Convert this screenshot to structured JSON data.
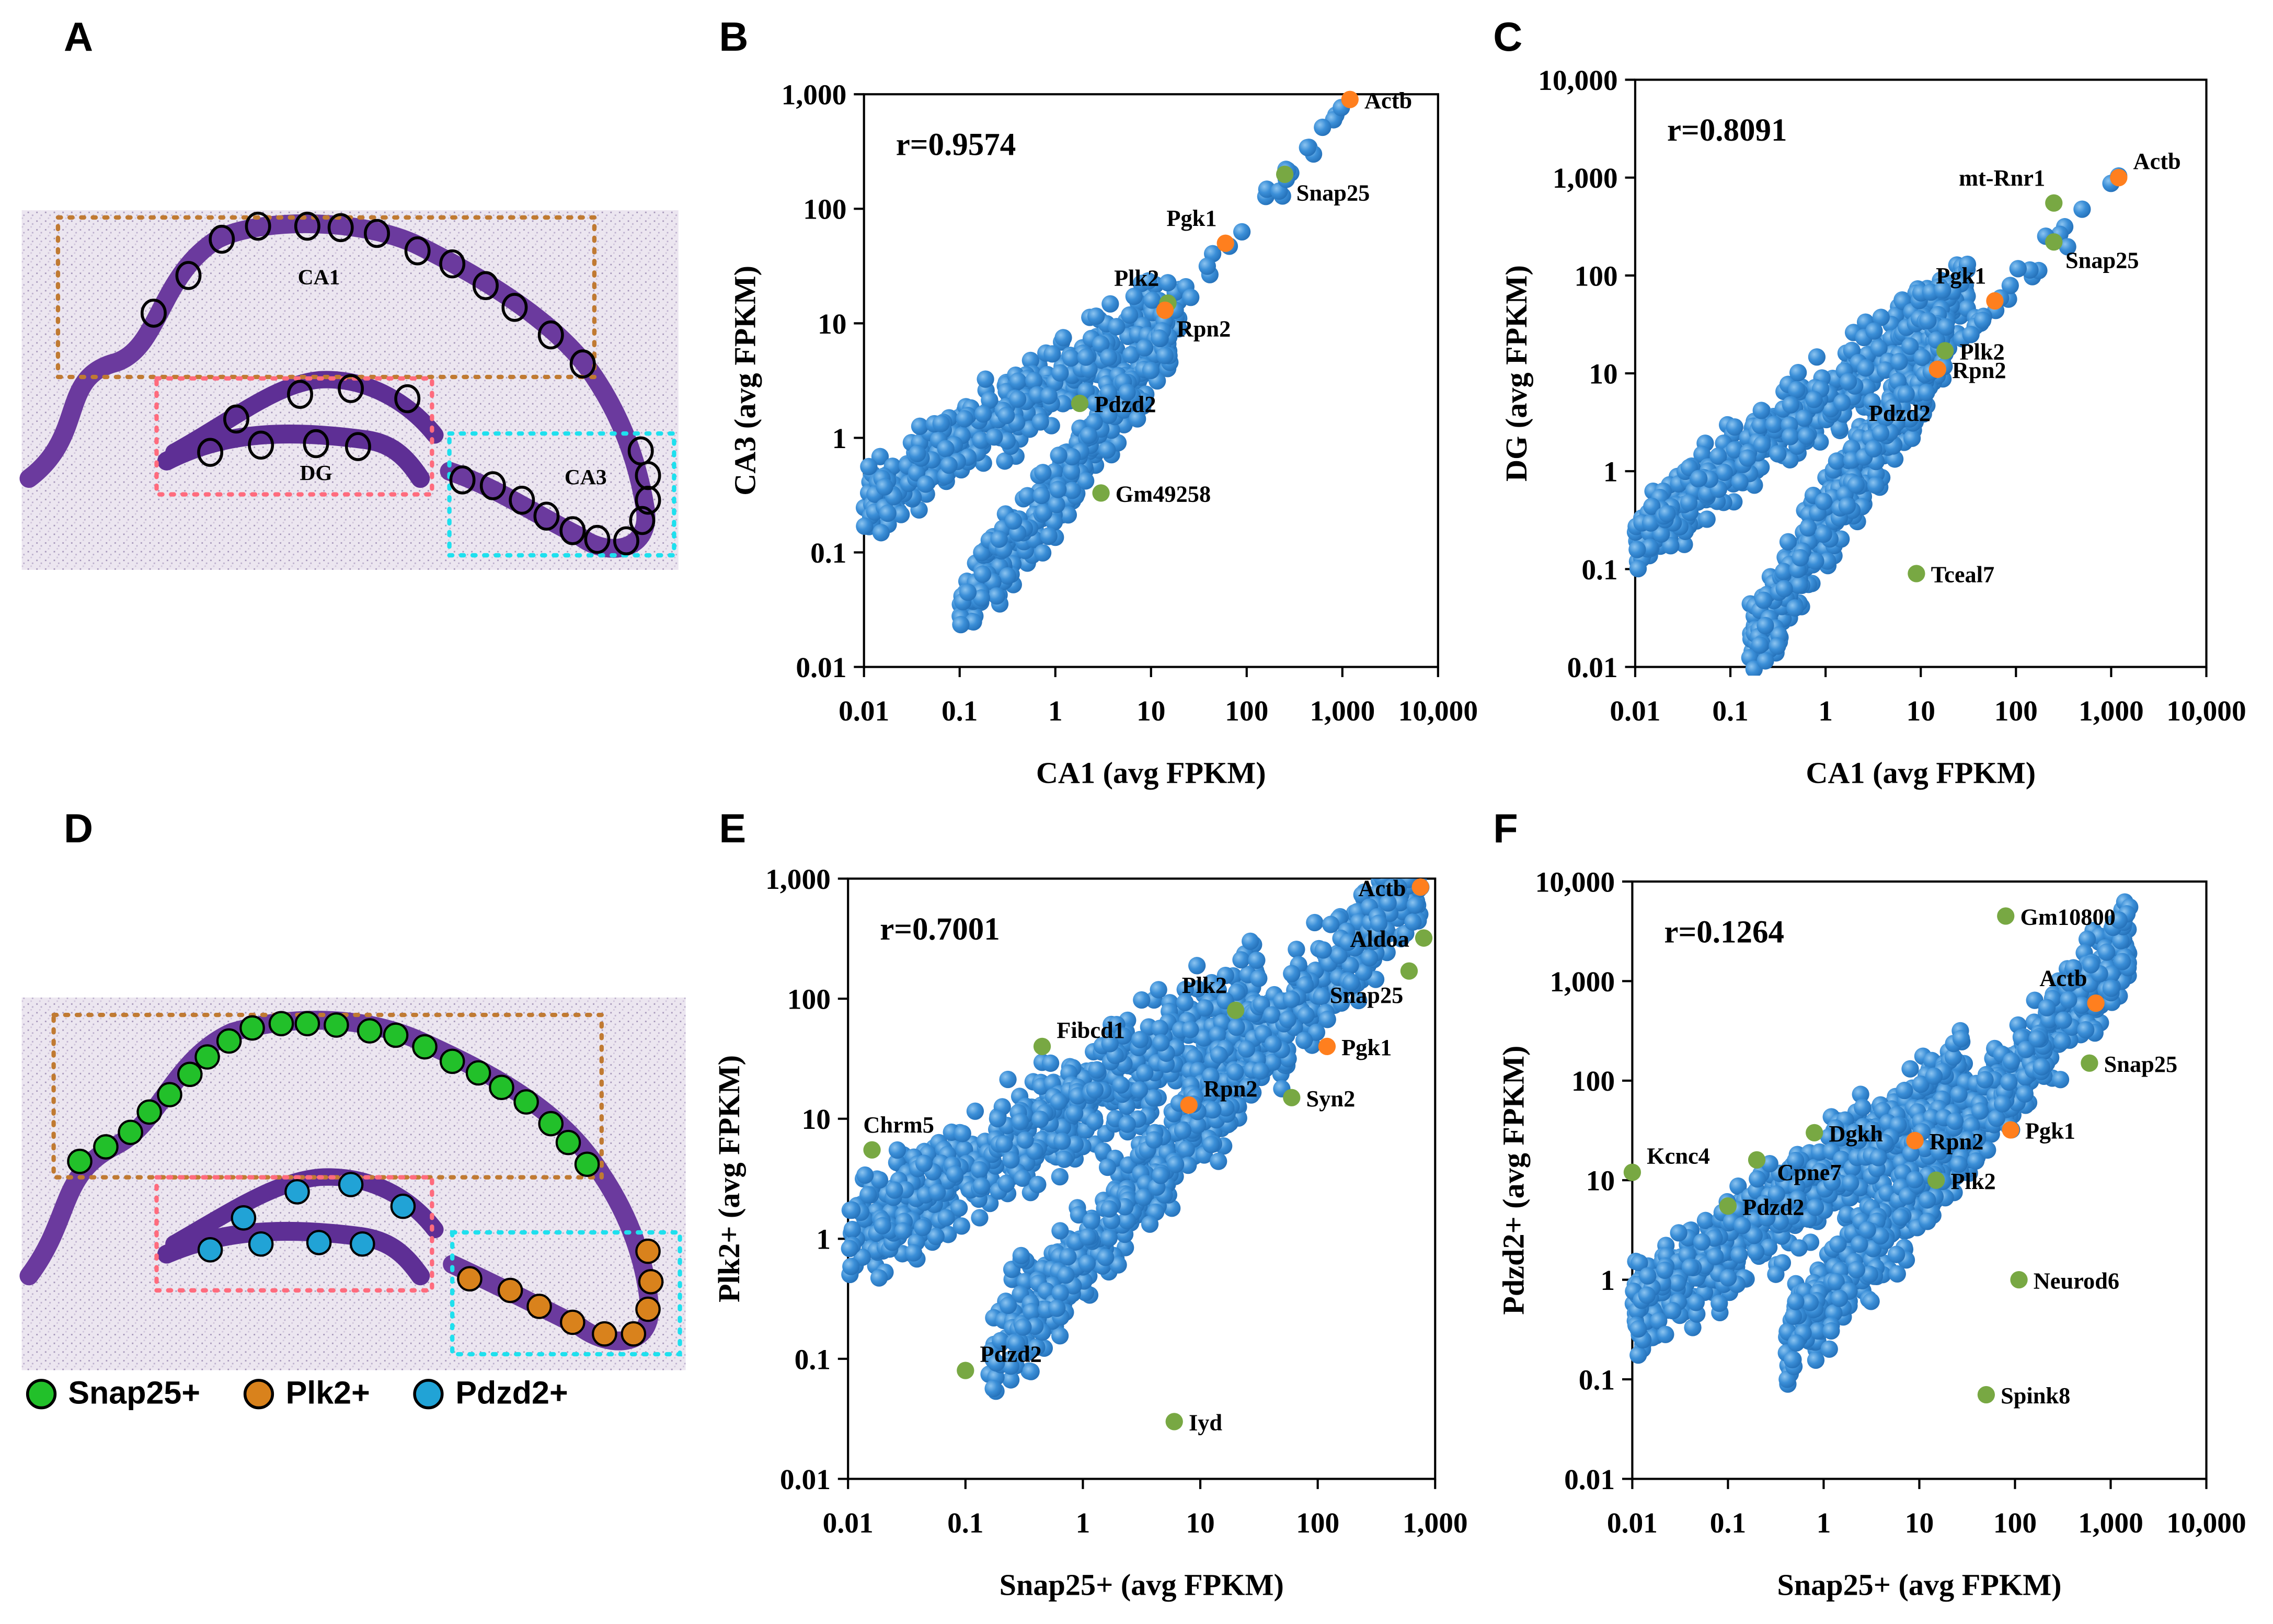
{
  "panels": {
    "A": "A",
    "B": "B",
    "C": "C",
    "D": "D",
    "E": "E",
    "F": "F"
  },
  "image_panels": {
    "A": {
      "regions": {
        "ca1": "CA1",
        "dg": "DG",
        "ca3": "CA3"
      }
    },
    "D": {
      "legend": [
        {
          "label": "Snap25+",
          "color": "#22c02a"
        },
        {
          "label": "Plk2+",
          "color": "#d9821c"
        },
        {
          "label": "Pdzd2+",
          "color": "#21a3d6"
        }
      ]
    }
  },
  "colors": {
    "cloud": "#3b8fd8",
    "orange": "#ff7f1e",
    "green": "#78a843"
  },
  "chart_data": [
    {
      "id": "B",
      "type": "scatter",
      "scale": "log",
      "r_label": "r=0.9574",
      "xlabel": "CA1 (avg FPKM)",
      "ylabel": "CA3 (avg FPKM)",
      "xlim": [
        0.01,
        10000
      ],
      "ylim": [
        0.01,
        1000
      ],
      "xticks": [
        "0.01",
        "0.1",
        "1",
        "10",
        "100",
        "1,000",
        "10,000"
      ],
      "yticks": [
        "0.01",
        "0.1",
        "1",
        "10",
        "100",
        "1,000"
      ],
      "clouds": [
        {
          "log_x_range": [
            -2,
            1.3
          ],
          "slope": 0.53,
          "intercept": 0.47,
          "spread": 0.25,
          "count": 420
        },
        {
          "log_x_range": [
            -1,
            1.2
          ],
          "slope": 1.1,
          "intercept": -0.45,
          "spread": 0.22,
          "count": 330
        },
        {
          "log_x_range": [
            1,
            3.1
          ],
          "slope": 1.0,
          "intercept": -0.15,
          "spread": 0.08,
          "count": 25
        }
      ],
      "points": [
        {
          "gene": "Actb",
          "x": 1200,
          "y": 900,
          "color": "orange",
          "label_pos": "right"
        },
        {
          "gene": "Snap25",
          "x": 250,
          "y": 200,
          "color": "green",
          "label_pos": "below-right"
        },
        {
          "gene": "Pgk1",
          "x": 60,
          "y": 50,
          "color": "orange",
          "label_pos": "above-left"
        },
        {
          "gene": "Plk2",
          "x": 15,
          "y": 15,
          "color": "green",
          "label_pos": "above-left"
        },
        {
          "gene": "Rpn2",
          "x": 14,
          "y": 13,
          "color": "orange",
          "label_pos": "below-right"
        },
        {
          "gene": "Pdzd2",
          "x": 1.8,
          "y": 2,
          "color": "green",
          "label_pos": "right"
        },
        {
          "gene": "Gm49258",
          "x": 3,
          "y": 0.33,
          "color": "green",
          "label_pos": "right"
        }
      ]
    },
    {
      "id": "C",
      "type": "scatter",
      "scale": "log",
      "r_label": "r=0.8091",
      "xlabel": "CA1 (avg FPKM)",
      "ylabel": "DG (avg FPKM)",
      "xlim": [
        0.01,
        10000
      ],
      "ylim": [
        0.01,
        10000
      ],
      "xticks": [
        "0.01",
        "0.1",
        "1",
        "10",
        "100",
        "1,000",
        "10,000"
      ],
      "yticks": [
        "0.01",
        "0.1",
        "1",
        "10",
        "100",
        "1,000",
        "10,000"
      ],
      "clouds": [
        {
          "log_x_range": [
            -2,
            1.5
          ],
          "slope": 0.73,
          "intercept": 0.76,
          "spread": 0.25,
          "count": 480
        },
        {
          "log_x_range": [
            -0.8,
            1.3
          ],
          "slope": 1.55,
          "intercept": -0.55,
          "spread": 0.3,
          "count": 480
        },
        {
          "log_x_range": [
            1.2,
            3.1
          ],
          "slope": 1.0,
          "intercept": -0.1,
          "spread": 0.1,
          "count": 25
        }
      ],
      "points": [
        {
          "gene": "Actb",
          "x": 1200,
          "y": 1000,
          "color": "orange",
          "label_pos": "right-up"
        },
        {
          "gene": "mt-Rnr1",
          "x": 250,
          "y": 550,
          "color": "green",
          "label_pos": "above-left"
        },
        {
          "gene": "Snap25",
          "x": 250,
          "y": 220,
          "color": "green",
          "label_pos": "below-right"
        },
        {
          "gene": "Pgk1",
          "x": 60,
          "y": 55,
          "color": "orange",
          "label_pos": "above-left"
        },
        {
          "gene": "Plk2",
          "x": 18,
          "y": 17,
          "color": "green",
          "label_pos": "right"
        },
        {
          "gene": "Rpn2",
          "x": 15,
          "y": 11,
          "color": "orange",
          "label_pos": "right"
        },
        {
          "gene": "Pdzd2",
          "x": 6,
          "y": 4,
          "color": "none",
          "label_pos": "center"
        },
        {
          "gene": "Tceal7",
          "x": 9,
          "y": 0.09,
          "color": "green",
          "label_pos": "right"
        }
      ]
    },
    {
      "id": "E",
      "type": "scatter",
      "scale": "log",
      "r_label": "r=0.7001",
      "xlabel": "Snap25+ (avg FPKM)",
      "ylabel": "Plk2+ (avg FPKM)",
      "xlim": [
        0.01,
        1000
      ],
      "ylim": [
        0.01,
        1000
      ],
      "xticks": [
        "0.01",
        "0.1",
        "1",
        "10",
        "100",
        "1,000"
      ],
      "yticks": [
        "0.01",
        "0.1",
        "1",
        "10",
        "100",
        "1,000"
      ],
      "clouds": [
        {
          "log_x_range": [
            -2,
            1.5
          ],
          "slope": 0.57,
          "intercept": 1.13,
          "spread": 0.33,
          "count": 650
        },
        {
          "log_x_range": [
            -0.8,
            2.9
          ],
          "slope": 1.1,
          "intercept": -0.1,
          "spread": 0.3,
          "count": 750
        }
      ],
      "points": [
        {
          "gene": "Actb",
          "x": 750,
          "y": 850,
          "color": "orange",
          "label_pos": "left"
        },
        {
          "gene": "Aldoa",
          "x": 800,
          "y": 320,
          "color": "green",
          "label_pos": "left"
        },
        {
          "gene": "Snap25",
          "x": 600,
          "y": 170,
          "color": "green",
          "label_pos": "below-left"
        },
        {
          "gene": "Plk2",
          "x": 20,
          "y": 80,
          "color": "green",
          "label_pos": "above-left"
        },
        {
          "gene": "Pgk1",
          "x": 120,
          "y": 40,
          "color": "orange",
          "label_pos": "right"
        },
        {
          "gene": "Rpn2",
          "x": 8,
          "y": 13,
          "color": "orange",
          "label_pos": "right-up"
        },
        {
          "gene": "Syn2",
          "x": 60,
          "y": 15,
          "color": "green",
          "label_pos": "right"
        },
        {
          "gene": "Fibcd1",
          "x": 0.45,
          "y": 40,
          "color": "green",
          "label_pos": "right-up"
        },
        {
          "gene": "Chrm5",
          "x": 0.016,
          "y": 5.5,
          "color": "green",
          "label_pos": "above"
        },
        {
          "gene": "Pdzd2",
          "x": 0.1,
          "y": 0.08,
          "color": "green",
          "label_pos": "right-up"
        },
        {
          "gene": "Iyd",
          "x": 6,
          "y": 0.03,
          "color": "green",
          "label_pos": "right"
        }
      ]
    },
    {
      "id": "F",
      "type": "scatter",
      "scale": "log",
      "r_label": "r=0.1264",
      "xlabel": "Snap25+ (avg FPKM)",
      "ylabel": "Pdzd2+ (avg FPKM)",
      "xlim": [
        0.01,
        10000
      ],
      "ylim": [
        0.01,
        10000
      ],
      "xticks": [
        "0.01",
        "0.1",
        "1",
        "10",
        "100",
        "1,000",
        "10,000"
      ],
      "yticks": [
        "0.01",
        "0.1",
        "1",
        "10",
        "100",
        "1,000",
        "10,000"
      ],
      "clouds": [
        {
          "log_x_range": [
            -2,
            1.5
          ],
          "slope": 0.67,
          "intercept": 1.03,
          "spread": 0.33,
          "count": 650
        },
        {
          "log_x_range": [
            -0.4,
            3.2
          ],
          "slope": 1.15,
          "intercept": -0.25,
          "spread": 0.33,
          "count": 750
        }
      ],
      "points": [
        {
          "gene": "Gm10800",
          "x": 80,
          "y": 4500,
          "color": "green",
          "label_pos": "right"
        },
        {
          "gene": "Actb",
          "x": 700,
          "y": 600,
          "color": "orange",
          "label_pos": "above-left"
        },
        {
          "gene": "Snap25",
          "x": 600,
          "y": 150,
          "color": "green",
          "label_pos": "right"
        },
        {
          "gene": "Pgk1",
          "x": 90,
          "y": 32,
          "color": "orange",
          "label_pos": "right"
        },
        {
          "gene": "Rpn2",
          "x": 9,
          "y": 25,
          "color": "orange",
          "label_pos": "right"
        },
        {
          "gene": "Dgkh",
          "x": 0.8,
          "y": 30,
          "color": "green",
          "label_pos": "right"
        },
        {
          "gene": "Cpne7",
          "x": 0.2,
          "y": 16,
          "color": "green",
          "label_pos": "right-down"
        },
        {
          "gene": "Kcnc4",
          "x": 0.01,
          "y": 12,
          "color": "green",
          "label_pos": "right-up"
        },
        {
          "gene": "Plk2",
          "x": 15,
          "y": 10,
          "color": "green",
          "label_pos": "right"
        },
        {
          "gene": "Pdzd2",
          "x": 0.1,
          "y": 5.5,
          "color": "green",
          "label_pos": "right"
        },
        {
          "gene": "Neurod6",
          "x": 110,
          "y": 1,
          "color": "green",
          "label_pos": "right"
        },
        {
          "gene": "Spink8",
          "x": 50,
          "y": 0.07,
          "color": "green",
          "label_pos": "right"
        }
      ]
    }
  ]
}
